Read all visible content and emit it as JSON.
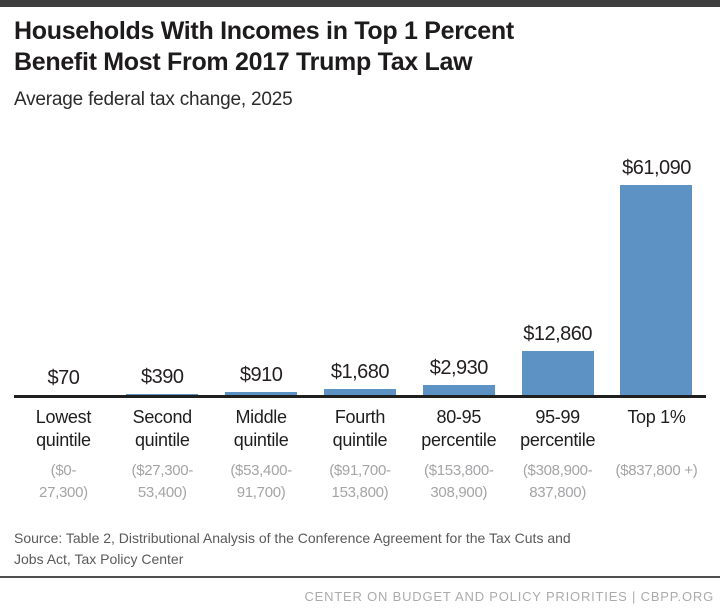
{
  "header": {
    "title_line1": "Households With Incomes in Top 1 Percent",
    "title_line2": "Benefit Most From 2017 Trump Tax Law",
    "subtitle": "Average federal tax change, 2025"
  },
  "chart_data": {
    "type": "bar",
    "title": "Households With Incomes in Top 1 Percent Benefit Most From 2017 Trump Tax Law",
    "subtitle": "Average federal tax change, 2025",
    "categories": [
      "Lowest quintile",
      "Second quintile",
      "Middle quintile",
      "Fourth quintile",
      "80-95 percentile",
      "95-99 percentile",
      "Top 1%"
    ],
    "category_label_lines": [
      [
        "Lowest",
        "quintile"
      ],
      [
        "Second",
        "quintile"
      ],
      [
        "Middle",
        "quintile"
      ],
      [
        "Fourth",
        "quintile"
      ],
      [
        "80-95",
        "percentile"
      ],
      [
        "95-99",
        "percentile"
      ],
      [
        "Top 1%",
        ""
      ]
    ],
    "income_ranges": [
      "($0-27,300)",
      "($27,300-53,400)",
      "($53,400-91,700)",
      "($91,700-153,800)",
      "($153,800-308,900)",
      "($308,900-837,800)",
      "($837,800 +)"
    ],
    "range_label_lines": [
      [
        "($0-",
        "27,300)"
      ],
      [
        "($27,300-",
        "53,400)"
      ],
      [
        "($53,400-",
        "91,700)"
      ],
      [
        "($91,700-",
        "153,800)"
      ],
      [
        "($153,800-",
        "308,900)"
      ],
      [
        "($308,900-",
        "837,800)"
      ],
      [
        "($837,800 +)",
        ""
      ]
    ],
    "values": [
      70,
      390,
      910,
      1680,
      2930,
      12860,
      61090
    ],
    "value_labels": [
      "$70",
      "$390",
      "$910",
      "$1,680",
      "$2,930",
      "$12,860",
      "$61,090"
    ],
    "bar_color": "#5c92c4",
    "axis_line_color": "#1f1f1f",
    "ylim": [
      0,
      61090
    ],
    "grid": false,
    "legend": false
  },
  "source": {
    "line1": "Source: Table 2, Distributional Analysis of the Conference Agreement for the Tax Cuts and",
    "line2": "Jobs Act, Tax Policy Center"
  },
  "footer": {
    "text": "CENTER ON BUDGET AND POLICY PRIORITIES | CBPP.ORG"
  }
}
